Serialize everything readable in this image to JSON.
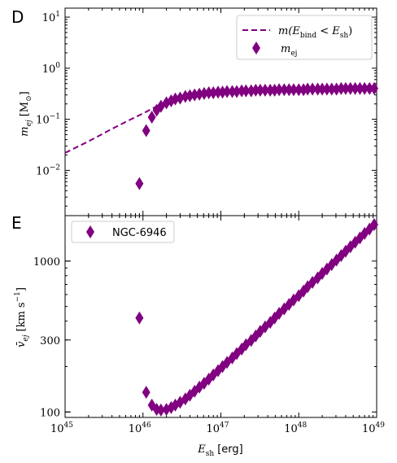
{
  "figure": {
    "panel_d_letter": "D",
    "panel_e_letter": "E",
    "xlabel_main": "E",
    "xlabel_sub": "sh",
    "xlabel_unit": "[erg]",
    "panel_d_ylabel_main": "m",
    "panel_d_ylabel_sub": "ej",
    "panel_d_ylabel_unit": "[M",
    "panel_d_ylabel_unit_sub": "⊙",
    "panel_d_ylabel_unit_close": "]",
    "panel_e_ylabel_main": "v̄",
    "panel_e_ylabel_sub": "ej",
    "panel_e_ylabel_unit": "[km s",
    "panel_e_ylabel_unit_sup": "−1",
    "panel_e_ylabel_unit_close": "]",
    "legend_d_line_label": "m(E",
    "legend_d_line_label_sub1": "bind",
    "legend_d_line_label_mid": " < E",
    "legend_d_line_label_sub2": "sh",
    "legend_d_line_label_close": ")",
    "legend_d_marker_label": "m",
    "legend_d_marker_label_sub": "ej",
    "legend_e_marker_label": "NGC-6946",
    "series_color": "#800080"
  },
  "chart_data": [
    {
      "panel": "D",
      "type": "scatter",
      "x_scale": "log",
      "y_scale": "log",
      "xlim": [
        1e+45,
        1e+49
      ],
      "ylim": [
        0.0013,
        15
      ],
      "x_ticks": [
        {
          "base": "10",
          "exp": "45",
          "value": 1e+45
        },
        {
          "base": "10",
          "exp": "46",
          "value": 1e+46
        },
        {
          "base": "10",
          "exp": "47",
          "value": 1e+47
        },
        {
          "base": "10",
          "exp": "48",
          "value": 1e+48
        },
        {
          "base": "10",
          "exp": "49",
          "value": 1e+49
        }
      ],
      "y_ticks": [
        {
          "base": "10",
          "exp": "1",
          "value": 10
        },
        {
          "base": "10",
          "exp": "0",
          "value": 1
        },
        {
          "base": "10",
          "exp": "−1",
          "value": 0.1
        },
        {
          "base": "10",
          "exp": "−2",
          "value": 0.01
        }
      ],
      "legend_position": "top-right",
      "series": [
        {
          "kind": "dashed-line",
          "x": [
            1e+45,
            2e+45,
            4e+45,
            7e+45,
            1e+46,
            1.5e+46,
            2e+46,
            3e+46,
            5e+46,
            1e+47,
            3e+47,
            1e+48,
            1e+49
          ],
          "y": [
            0.022,
            0.037,
            0.065,
            0.1,
            0.13,
            0.18,
            0.22,
            0.27,
            0.32,
            0.36,
            0.39,
            0.41,
            0.45
          ]
        },
        {
          "kind": "diamond-markers",
          "x": [
            9e+45,
            1.1e+46,
            1.3e+46,
            1.5e+46,
            1.7e+46,
            2e+46,
            2.3e+46,
            2.6e+46,
            3e+46,
            3.5e+46,
            4e+46,
            4.6e+46,
            5.3e+46,
            6.1e+46,
            7e+46,
            8e+46,
            9.2e+46,
            1.05e+47,
            1.2e+47,
            1.4e+47,
            1.6e+47,
            1.85e+47,
            2.1e+47,
            2.45e+47,
            2.8e+47,
            3.2e+47,
            3.7e+47,
            4.3e+47,
            4.9e+47,
            5.6e+47,
            6.5e+47,
            7.5e+47,
            8.6e+47,
            1e+48,
            1.15e+48,
            1.3e+48,
            1.5e+48,
            1.75e+48,
            2e+48,
            2.3e+48,
            2.65e+48,
            3.05e+48,
            3.5e+48,
            4e+48,
            4.6e+48,
            5.3e+48,
            6.1e+48,
            7e+48,
            8.1e+48,
            9.3e+48
          ],
          "y": [
            0.0055,
            0.06,
            0.11,
            0.15,
            0.18,
            0.21,
            0.23,
            0.25,
            0.26,
            0.28,
            0.29,
            0.3,
            0.31,
            0.32,
            0.33,
            0.33,
            0.34,
            0.34,
            0.35,
            0.35,
            0.35,
            0.36,
            0.36,
            0.36,
            0.37,
            0.37,
            0.37,
            0.37,
            0.37,
            0.38,
            0.38,
            0.38,
            0.38,
            0.38,
            0.38,
            0.39,
            0.39,
            0.39,
            0.39,
            0.39,
            0.39,
            0.39,
            0.4,
            0.4,
            0.4,
            0.4,
            0.4,
            0.4,
            0.4,
            0.4
          ]
        }
      ]
    },
    {
      "panel": "E",
      "type": "scatter",
      "x_scale": "log",
      "y_scale": "log",
      "xlim": [
        1e+45,
        1e+49
      ],
      "ylim": [
        92,
        2000
      ],
      "x_ticks": [
        {
          "base": "10",
          "exp": "45",
          "value": 1e+45
        },
        {
          "base": "10",
          "exp": "46",
          "value": 1e+46
        },
        {
          "base": "10",
          "exp": "47",
          "value": 1e+47
        },
        {
          "base": "10",
          "exp": "48",
          "value": 1e+48
        },
        {
          "base": "10",
          "exp": "49",
          "value": 1e+49
        }
      ],
      "y_ticks": [
        {
          "label": "1000",
          "value": 1000
        },
        {
          "label": "300",
          "value": 300
        },
        {
          "label": "100",
          "value": 100
        }
      ],
      "legend_position": "top-left",
      "series": [
        {
          "name": "NGC-6946",
          "kind": "diamond-markers",
          "x": [
            9e+45,
            1.1e+46,
            1.3e+46,
            1.5e+46,
            1.7e+46,
            2e+46,
            2.3e+46,
            2.6e+46,
            3e+46,
            3.5e+46,
            4e+46,
            4.6e+46,
            5.3e+46,
            6.1e+46,
            7e+46,
            8e+46,
            9.2e+46,
            1.05e+47,
            1.2e+47,
            1.4e+47,
            1.6e+47,
            1.85e+47,
            2.1e+47,
            2.45e+47,
            2.8e+47,
            3.2e+47,
            3.7e+47,
            4.3e+47,
            4.9e+47,
            5.6e+47,
            6.5e+47,
            7.5e+47,
            8.6e+47,
            1e+48,
            1.15e+48,
            1.3e+48,
            1.5e+48,
            1.75e+48,
            2e+48,
            2.3e+48,
            2.65e+48,
            3.05e+48,
            3.5e+48,
            4e+48,
            4.6e+48,
            5.3e+48,
            6.1e+48,
            7e+48,
            8.1e+48,
            9.3e+48
          ],
          "y": [
            420,
            135,
            111,
            104,
            103,
            104,
            107,
            111,
            116,
            122,
            129,
            137,
            146,
            155,
            165,
            176,
            188,
            200,
            213,
            228,
            244,
            261,
            279,
            298,
            319,
            342,
            366,
            392,
            420,
            450,
            482,
            516,
            552,
            590,
            632,
            676,
            723,
            774,
            828,
            886,
            948,
            1015,
            1086,
            1162,
            1244,
            1331,
            1424,
            1524,
            1630,
            1745
          ]
        }
      ]
    }
  ]
}
